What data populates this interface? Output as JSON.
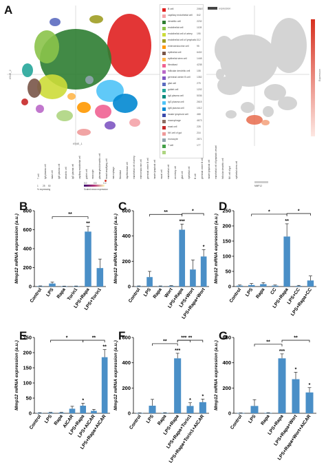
{
  "panel_letters": {
    "A": "A",
    "B": "B",
    "C": "C",
    "D": "D",
    "E": "E",
    "F": "F",
    "G": "G"
  },
  "tsne": {
    "axis_x": "tSNE_1",
    "axis_y": "tSNE_2",
    "expr_header": "expression",
    "expr_scale_label": "Expression"
  },
  "legend": [
    {
      "label": "B cell",
      "count": "20847",
      "color": "#e02020"
    },
    {
      "label": "capillary endothelial cell",
      "count": "842",
      "color": "#f4a3a8"
    },
    {
      "label": "dendritic cell",
      "count": "2232",
      "color": "#2e7d32"
    },
    {
      "label": "endothelial cell",
      "count": "1128",
      "color": "#8bc34a"
    },
    {
      "label": "endothelial cell of artery",
      "count": "195",
      "color": "#cddc39"
    },
    {
      "label": "endothelial cell of lymphatic",
      "count": "312",
      "color": "#9e9d24"
    },
    {
      "label": "enteroendocrine cell",
      "count": "95",
      "color": "#ff9800"
    },
    {
      "label": "epithelial cell",
      "count": "6402",
      "color": "#795548"
    },
    {
      "label": "epithelial stem cell",
      "count": "1448",
      "color": "#ffb74d"
    },
    {
      "label": "fibroblast",
      "count": "4238",
      "color": "#f06292"
    },
    {
      "label": "follicular dendritic cell",
      "count": "108",
      "color": "#ba68c8"
    },
    {
      "label": "germinal center B cell",
      "count": "1352",
      "color": "#7e57c2"
    },
    {
      "label": "glial cell",
      "count": "275",
      "color": "#5c6bc0"
    },
    {
      "label": "goblet cell",
      "count": "1202",
      "color": "#26a69a"
    },
    {
      "label": "IgA plasma cell",
      "count": "5036",
      "color": "#00897b"
    },
    {
      "label": "IgG plasma cell",
      "count": "2615",
      "color": "#4fc3f7"
    },
    {
      "label": "IgM plasma cell",
      "count": "1012",
      "color": "#0288d1"
    },
    {
      "label": "innate lymphoid cell",
      "count": "468",
      "color": "#3949ab"
    },
    {
      "label": "macrophage",
      "count": "4673",
      "color": "#8d6e63"
    },
    {
      "label": "mast cell",
      "count": "228",
      "color": "#c62828"
    },
    {
      "label": "NK cell of gut",
      "count": "216",
      "color": "#ef9a9a"
    },
    {
      "label": "monocyte",
      "count": "2871",
      "color": "#90a4ae"
    },
    {
      "label": "T cell",
      "count": "177",
      "color": "#43a047"
    },
    {
      "label": "",
      "count": "",
      "color": "#aed581"
    }
  ],
  "dotplot": {
    "cell_types": [
      "T cell",
      "IgA plasma cell",
      "mast cell",
      "IgM plasma cell",
      "dendritic cell",
      "IgG plasma cell",
      "capillary endothelial cell",
      "goblet cell",
      "monocyte",
      "plasmacytoid dendritic cell",
      "transit amplifying cell",
      "macrophage",
      "fibroblast",
      "myofibroblast cell",
      "endothelial cell of artery",
      "enteroendocrine cell",
      "germinal center B cell",
      "innate lymphoid cell",
      "mural cell",
      "endothelial cell",
      "secretory cell",
      "glial cell",
      "epithelial cell",
      "B cell",
      "germinal center B cell",
      "innate lymphoid cell",
      "endothelial cell of lymphatic vessel",
      "follicular dendritic cell",
      "NK cell of gut",
      "epithelial stem cell"
    ],
    "gene": "MMP12",
    "pct_label": "% expressing",
    "mean_label": "Scaled mean expression",
    "pct_ticks": [
      "1",
      "25",
      "50"
    ],
    "mean_ticks": [
      "0.0",
      "0.5",
      "1.0"
    ]
  },
  "chart_data": [
    {
      "type": "bar",
      "panel": "B",
      "categories": [
        "Control",
        "LPS",
        "Rapa",
        "Torin1",
        "LPS+Rapa",
        "LPS+Torin1"
      ],
      "values": [
        5,
        32,
        3,
        4,
        580,
        195
      ],
      "errors": [
        2,
        15,
        2,
        2,
        55,
        95
      ],
      "ylabel": "Mmp12 mRNA expression (a.u.)",
      "ylim": [
        0,
        800
      ],
      "yticks": [
        0,
        200,
        400,
        600,
        800
      ],
      "bar_labels": [
        "",
        "",
        "",
        "",
        "**",
        ""
      ],
      "brackets": [
        {
          "from": 1,
          "to": 4,
          "label": "**"
        }
      ]
    },
    {
      "type": "bar",
      "panel": "C",
      "categories": [
        "Control",
        "LPS",
        "Rapa",
        "Wort",
        "LPS+Rapa",
        "LPS+Wort",
        "LPS+Rapa+Wort"
      ],
      "values": [
        3,
        75,
        3,
        5,
        450,
        135,
        238
      ],
      "errors": [
        2,
        45,
        2,
        2,
        45,
        75,
        55
      ],
      "ylabel": "Mmp12 mRNA expression (a.u.)",
      "ylim": [
        0,
        600
      ],
      "yticks": [
        0,
        200,
        400,
        600
      ],
      "bar_labels": [
        "",
        "",
        "",
        "",
        "***",
        "",
        "*"
      ],
      "brackets": [
        {
          "from": 1,
          "to": 4,
          "label": "**"
        },
        {
          "from": 4,
          "to": 6,
          "label": "*"
        }
      ]
    },
    {
      "type": "bar",
      "panel": "D",
      "categories": [
        "Control",
        "LPS",
        "Rapa",
        "CC",
        "LPS+Rapa",
        "LPS+CC",
        "LPS+Rapa+CC"
      ],
      "values": [
        3,
        5,
        8,
        3,
        165,
        2,
        20
      ],
      "errors": [
        2,
        5,
        5,
        2,
        42,
        2,
        15
      ],
      "ylabel": "Mmp12 mRNA expression (a.u.)",
      "ylim": [
        0,
        250
      ],
      "yticks": [
        0,
        50,
        100,
        150,
        200,
        250
      ],
      "bar_labels": [
        "",
        "",
        "",
        "",
        "**",
        "",
        ""
      ],
      "brackets": [
        {
          "from": 1,
          "to": 4,
          "label": "*"
        },
        {
          "from": 4,
          "to": 6,
          "label": "*"
        }
      ]
    },
    {
      "type": "bar",
      "panel": "E",
      "categories": [
        "Control",
        "LPS",
        "Rapa",
        "AICAR",
        "LPS+Rapa",
        "LPS+AICAR",
        "LPS+Rapa+AICAR"
      ],
      "values": [
        1,
        2,
        2,
        15,
        25,
        8,
        185
      ],
      "errors": [
        1,
        1,
        1,
        8,
        8,
        5,
        25
      ],
      "ylabel": "Mmp12 mRNA expression (a.u.)",
      "ylim": [
        0,
        250
      ],
      "yticks": [
        0,
        50,
        100,
        150,
        200,
        250
      ],
      "bar_labels": [
        "",
        "",
        "",
        "",
        "*",
        "",
        "**"
      ],
      "brackets": [
        {
          "from": 1,
          "to": 4,
          "label": "*"
        },
        {
          "from": 4,
          "to": 6,
          "label": "**"
        }
      ]
    },
    {
      "type": "bar",
      "panel": "F",
      "categories": [
        "Control",
        "LPS",
        "Rapa",
        "LPS+Rapa",
        "LPS+Rapa+Torin1",
        "LPS+Rapa+Torin1+AICAR"
      ],
      "values": [
        2,
        60,
        3,
        435,
        58,
        88
      ],
      "errors": [
        1,
        50,
        2,
        40,
        25,
        25
      ],
      "ylabel": "Mmp12 mRNA expression (a.u.)",
      "ylim": [
        0,
        600
      ],
      "yticks": [
        0,
        200,
        400,
        600
      ],
      "bar_labels": [
        "",
        "",
        "",
        "***",
        "*",
        "*"
      ],
      "brackets": [
        {
          "from": 1,
          "to": 3,
          "label": "**"
        },
        {
          "from": 3,
          "to": 4,
          "label": "***"
        },
        {
          "from": 3,
          "to": 5,
          "label": "**"
        }
      ]
    },
    {
      "type": "bar",
      "panel": "G",
      "categories": [
        "Control",
        "LPS",
        "Rapa",
        "LPS+Rapa",
        "LPS+Rapa+Wort",
        "LPS+Rapa+Wort+AICAR"
      ],
      "values": [
        2,
        58,
        3,
        435,
        270,
        165
      ],
      "errors": [
        1,
        50,
        2,
        35,
        55,
        38
      ],
      "ylabel": "Mmp12 mRNA expression (a.u.)",
      "ylim": [
        0,
        600
      ],
      "yticks": [
        0,
        200,
        400,
        600
      ],
      "bar_labels": [
        "",
        "",
        "",
        "***",
        "*",
        "*"
      ],
      "brackets": [
        {
          "from": 1,
          "to": 3,
          "label": "**"
        },
        {
          "from": 3,
          "to": 5,
          "label": "**"
        }
      ]
    }
  ]
}
